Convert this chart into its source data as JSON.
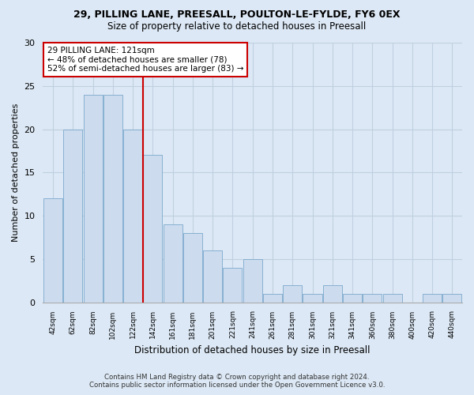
{
  "title": "29, PILLING LANE, PREESALL, POULTON-LE-FYLDE, FY6 0EX",
  "subtitle": "Size of property relative to detached houses in Preesall",
  "xlabel": "Distribution of detached houses by size in Preesall",
  "ylabel": "Number of detached properties",
  "bar_labels": [
    "42sqm",
    "62sqm",
    "82sqm",
    "102sqm",
    "122sqm",
    "142sqm",
    "161sqm",
    "181sqm",
    "201sqm",
    "221sqm",
    "241sqm",
    "261sqm",
    "281sqm",
    "301sqm",
    "321sqm",
    "341sqm",
    "360sqm",
    "380sqm",
    "400sqm",
    "420sqm",
    "440sqm"
  ],
  "bar_values": [
    12,
    20,
    24,
    24,
    20,
    17,
    9,
    8,
    6,
    4,
    5,
    1,
    2,
    1,
    2,
    1,
    1,
    1,
    0,
    1,
    1
  ],
  "bar_color": "#ccdcee",
  "bar_edge_color": "#7ba8cc",
  "vline_color": "#cc0000",
  "annotation_line1": "29 PILLING LANE: 121sqm",
  "annotation_line2": "← 48% of detached houses are smaller (78)",
  "annotation_line3": "52% of semi-detached houses are larger (83) →",
  "annotation_box_color": "#ffffff",
  "annotation_box_edge": "#cc0000",
  "ylim": [
    0,
    30
  ],
  "yticks": [
    0,
    5,
    10,
    15,
    20,
    25,
    30
  ],
  "footer_line1": "Contains HM Land Registry data © Crown copyright and database right 2024.",
  "footer_line2": "Contains public sector information licensed under the Open Government Licence v3.0.",
  "background_color": "#dce8f5",
  "plot_bg_color": "#dce8f5",
  "grid_color": "#c0d0e0",
  "vline_x_index": 4
}
